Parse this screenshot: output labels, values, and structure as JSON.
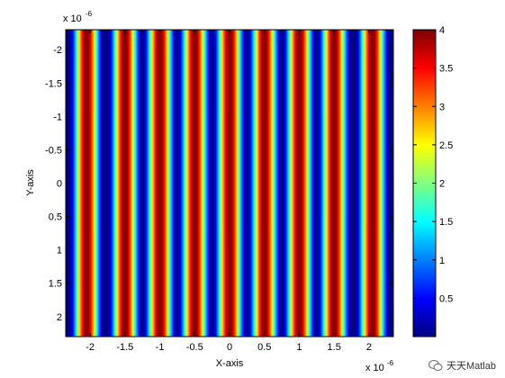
{
  "chart_data": {
    "type": "heatmap",
    "colormap": "jet",
    "title": "",
    "xlabel": "X-axis",
    "ylabel": "Y-axis",
    "x_exponent_label": "x 10",
    "x_exponent_power": "-6",
    "y_exponent_label": "x 10",
    "y_exponent_power": "-6",
    "xlim": [
      -2.35,
      2.35
    ],
    "ylim": [
      -2.3,
      2.3
    ],
    "y_reversed": true,
    "clim": [
      0,
      4
    ],
    "x_ticks": [
      -2,
      -1.5,
      -1,
      -0.5,
      0,
      0.5,
      1,
      1.5,
      2
    ],
    "x_tick_labels": [
      "-2",
      "-1.5",
      "-1",
      "-0.5",
      "0",
      "0.5",
      "1",
      "1.5",
      "2"
    ],
    "y_ticks": [
      -2,
      -1.5,
      -1,
      -0.5,
      0,
      0.5,
      1,
      1.5,
      2
    ],
    "y_tick_labels": [
      "-2",
      "-1.5",
      "-1",
      "-0.5",
      "0",
      "0.5",
      "1",
      "1.5",
      "2"
    ],
    "colorbar_ticks": [
      0.5,
      1,
      1.5,
      2,
      2.5,
      3,
      3.5,
      4
    ],
    "colorbar_tick_labels": [
      "0.5",
      "1",
      "1.5",
      "2",
      "2.5",
      "3",
      "3.5",
      "4"
    ],
    "pattern": "vertical stripes, intensity varies only with x",
    "fringe_maxima_x": [
      -2.05,
      -1.5,
      -1.0,
      -0.5,
      0.0,
      0.5,
      1.0,
      1.5,
      2.05
    ],
    "fringe_period": 0.52
  },
  "watermark": {
    "text": "天天Matlab"
  }
}
